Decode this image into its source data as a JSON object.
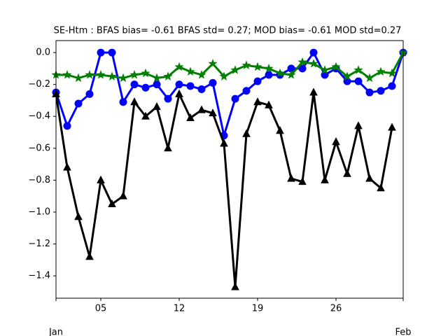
{
  "chart_data": {
    "type": "line",
    "title": "SE-Htm   : BFAS bias= -0.61 BFAS std= 0.27; MOD bias= -0.61 MOD std=0.27",
    "x": [
      1,
      2,
      3,
      4,
      5,
      6,
      7,
      8,
      9,
      10,
      11,
      12,
      13,
      14,
      15,
      16,
      17,
      18,
      19,
      20,
      21,
      22,
      23,
      24,
      25,
      26,
      27,
      28,
      29,
      30,
      31,
      32
    ],
    "xlim": [
      1,
      32
    ],
    "xticks": [
      {
        "value": 5,
        "label": "05"
      },
      {
        "value": 12,
        "label": "12"
      },
      {
        "value": 19,
        "label": "19"
      },
      {
        "value": 26,
        "label": "26"
      }
    ],
    "x_period_ticks": [
      {
        "value": 1,
        "label": "Jan"
      },
      {
        "value": 32,
        "label": "Feb"
      }
    ],
    "ylim": [
      -1.54,
      0.075
    ],
    "yticks": [
      {
        "value": 0,
        "label": "0.0"
      },
      {
        "value": -0.2,
        "label": "−0.2"
      },
      {
        "value": -0.4,
        "label": "−0.4"
      },
      {
        "value": -0.6,
        "label": "−0.6"
      },
      {
        "value": -0.8,
        "label": "−0.8"
      },
      {
        "value": -1.0,
        "label": "−1.0"
      },
      {
        "value": -1.2,
        "label": "−1.2"
      },
      {
        "value": -1.4,
        "label": "−1.4"
      }
    ],
    "grid": false,
    "series": [
      {
        "color": "#0000ff",
        "marker": "circle",
        "values": [
          -0.25,
          -0.46,
          -0.32,
          -0.26,
          0.0,
          0.0,
          -0.31,
          -0.2,
          -0.22,
          -0.2,
          -0.29,
          -0.2,
          -0.21,
          -0.23,
          -0.19,
          -0.52,
          -0.29,
          -0.24,
          -0.18,
          -0.14,
          -0.14,
          -0.1,
          -0.1,
          0.0,
          -0.14,
          -0.1,
          -0.18,
          -0.18,
          -0.25,
          -0.24,
          -0.21,
          0.0
        ]
      },
      {
        "color": "#008000",
        "marker": "star",
        "values": [
          -0.14,
          -0.14,
          -0.16,
          -0.14,
          -0.14,
          -0.15,
          -0.16,
          -0.14,
          -0.13,
          -0.16,
          -0.15,
          -0.09,
          -0.12,
          -0.14,
          -0.07,
          -0.15,
          -0.11,
          -0.08,
          -0.09,
          -0.1,
          -0.13,
          -0.14,
          -0.06,
          -0.07,
          -0.11,
          -0.09,
          -0.15,
          -0.11,
          -0.16,
          -0.12,
          -0.13,
          0.0
        ]
      },
      {
        "color": "#000000",
        "marker": "triangle",
        "values": [
          -0.26,
          -0.72,
          -1.03,
          -1.28,
          -0.8,
          -0.95,
          -0.9,
          -0.31,
          -0.4,
          -0.34,
          -0.6,
          -0.26,
          -0.41,
          -0.36,
          -0.38,
          -0.57,
          -1.47,
          -0.51,
          -0.31,
          -0.33,
          -0.49,
          -0.79,
          -0.81,
          -0.25,
          -0.8,
          -0.56,
          -0.76,
          -0.46,
          -0.79,
          -0.85,
          -0.47,
          null
        ]
      }
    ]
  }
}
